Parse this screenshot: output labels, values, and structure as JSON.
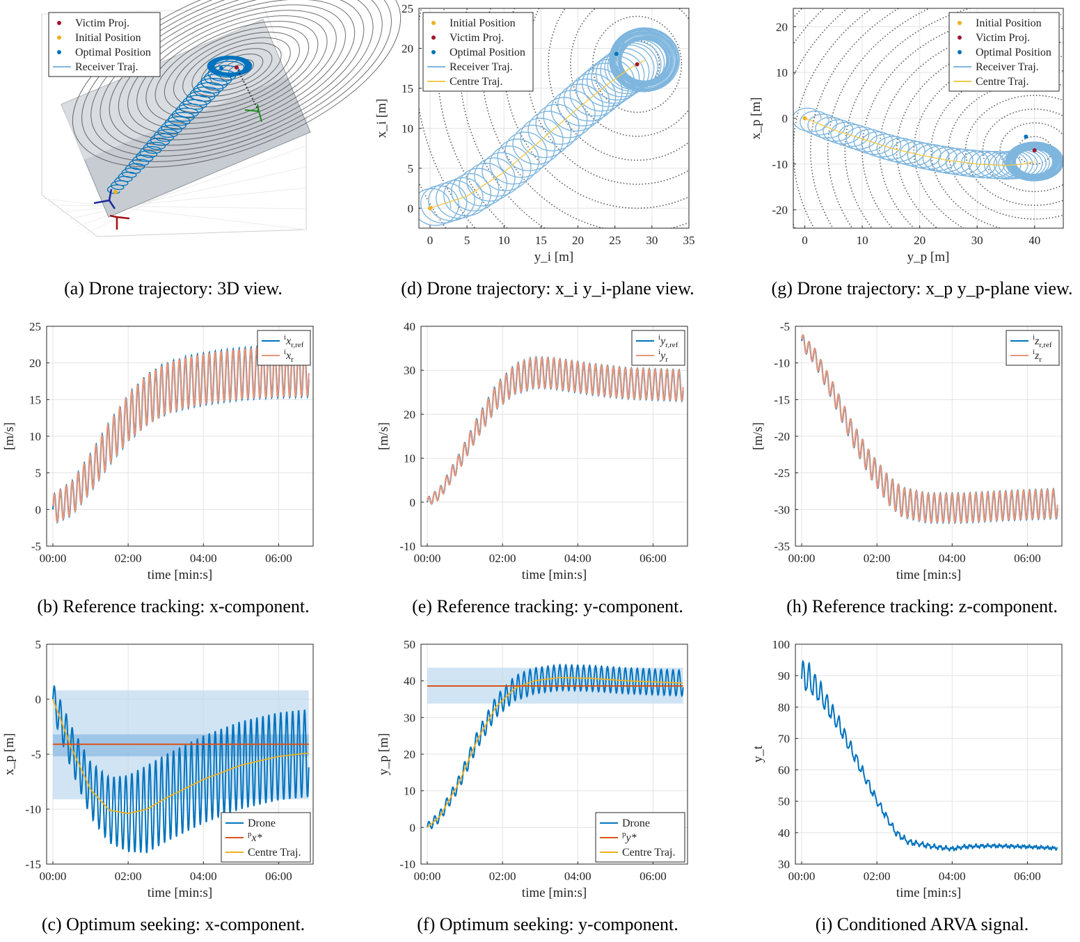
{
  "captions": {
    "a": "(a) Drone trajectory: 3D view.",
    "d": "(d) Drone trajectory: x_i y_i-plane view.",
    "g": "(g) Drone trajectory: x_p y_p-plane view.",
    "b": "(b) Reference tracking: x-component.",
    "e": "(e) Reference tracking: y-component.",
    "h": "(h) Reference tracking: z-component.",
    "c": "(c) Optimum seeking: x-component.",
    "f": "(f) Optimum seeking: y-component.",
    "i": "(i) Conditioned ARVA signal."
  },
  "colors": {
    "blue": "#0072bd",
    "orange": "#e8967a",
    "light_blue": "#7fb6de",
    "yellow": "#f2c94c",
    "red": "#a2142f",
    "gold": "#edb120",
    "brown": "#d95319",
    "band": "#bcd9ef",
    "band_dark": "#7fb2dc"
  },
  "legends": {
    "a": [
      "Victim Proj.",
      "Initial Position",
      "Optimal Position",
      "Receiver Traj."
    ],
    "d": [
      "Initial Position",
      "Victim Proj.",
      "Optimal Position",
      "Receiver Traj.",
      "Centre Traj."
    ],
    "g": [
      "Initial Position",
      "Victim Proj.",
      "Optimal Position",
      "Receiver Traj.",
      "Centre Traj."
    ],
    "b": [
      "i x_r,ref",
      "i x_r"
    ],
    "e": [
      "i y_r,ref",
      "i y_r"
    ],
    "h": [
      "i z_r,ref",
      "i z_r"
    ],
    "c": [
      "Drone",
      "p x*",
      "Centre Traj."
    ],
    "f": [
      "Drone",
      "p y*",
      "Centre Traj."
    ]
  },
  "axes": {
    "time_label": "time [min:s]",
    "ms_label": "[m/s]",
    "time_ticks": [
      "00:00",
      "02:00",
      "04:00",
      "06:00"
    ],
    "d_xlabel": "y_i [m]",
    "d_ylabel": "x_i [m]",
    "g_xlabel": "y_p [m]",
    "g_ylabel": "x_p [m]",
    "c_ylabel": "x_p [m]",
    "f_ylabel": "y_p [m]",
    "i_ylabel": "y_t"
  },
  "chart_data": [
    {
      "id": "a",
      "type": "scatter",
      "title": "(a) Drone trajectory: 3D view.",
      "note": "3D surface view of the drone trajectory",
      "series": [
        {
          "name": "Victim Proj."
        },
        {
          "name": "Initial Position"
        },
        {
          "name": "Optimal Position"
        },
        {
          "name": "Receiver Traj."
        }
      ]
    },
    {
      "id": "d",
      "type": "line",
      "title": "(d) Drone trajectory: x_i y_i-plane view.",
      "xlabel": "y_i [m]",
      "ylabel": "x_i [m]",
      "xlim": [
        -1.5,
        35
      ],
      "ylim": [
        -2.5,
        25
      ],
      "xticks": [
        0,
        5,
        10,
        15,
        20,
        25,
        30,
        35
      ],
      "yticks": [
        0,
        5,
        10,
        15,
        20,
        25
      ],
      "initial_position": [
        0,
        0
      ],
      "victim_proj": [
        28,
        18
      ],
      "optimal_position": [
        25.2,
        19.3
      ],
      "centre_traj": {
        "x": [
          0,
          5,
          10,
          15,
          20,
          24,
          27,
          29
        ],
        "y": [
          0,
          1.5,
          4.5,
          8.5,
          12.5,
          15.5,
          17.5,
          18.5
        ]
      },
      "orbit_radius_start": 2.8,
      "orbit_radius_end": 4.2
    },
    {
      "id": "g",
      "type": "line",
      "title": "(g) Drone trajectory: x_p y_p-plane view.",
      "xlabel": "y_p [m]",
      "ylabel": "x_p [m]",
      "xlim": [
        -2,
        45
      ],
      "ylim": [
        -24,
        24
      ],
      "xticks": [
        0,
        10,
        20,
        30,
        40
      ],
      "yticks": [
        -20,
        -10,
        0,
        10,
        20
      ],
      "initial_position": [
        0,
        0
      ],
      "victim_proj": [
        40,
        -7
      ],
      "optimal_position": [
        38.5,
        -4
      ],
      "centre_traj": {
        "x": [
          0,
          5,
          10,
          15,
          20,
          25,
          30,
          35,
          38,
          40
        ],
        "y": [
          0,
          -2.5,
          -4.5,
          -6.5,
          -8,
          -9.2,
          -10,
          -10.3,
          -10,
          -9.5
        ]
      },
      "orbit_radius_start": 2.8,
      "orbit_radius_end": 4.5
    },
    {
      "id": "b",
      "type": "line",
      "title": "(b) Reference tracking: x-component.",
      "xlabel": "time [min:s]",
      "ylabel": "[m/s]",
      "xlim_s": [
        -10,
        415
      ],
      "ylim": [
        -5,
        25
      ],
      "yticks": [
        -5,
        0,
        5,
        10,
        15,
        20,
        25
      ],
      "center_t": [
        0,
        30,
        60,
        90,
        120,
        150,
        180,
        210,
        240,
        270,
        300,
        330,
        360,
        408
      ],
      "center_v": [
        0,
        1.5,
        5,
        9,
        12.5,
        15,
        16.5,
        17.3,
        17.8,
        18.2,
        18.5,
        18.7,
        18.8,
        18.9
      ],
      "amplitude": [
        2,
        3.5
      ],
      "period_s": 9.5,
      "series": [
        {
          "name": "i x_r,ref"
        },
        {
          "name": "i x_r"
        }
      ]
    },
    {
      "id": "e",
      "type": "line",
      "title": "(e) Reference tracking: y-component.",
      "xlabel": "time [min:s]",
      "ylabel": "[m/s]",
      "xlim_s": [
        -10,
        415
      ],
      "ylim": [
        -10,
        40
      ],
      "yticks": [
        -10,
        0,
        10,
        20,
        30,
        40
      ],
      "center_t": [
        0,
        20,
        50,
        80,
        110,
        140,
        170,
        200,
        260,
        320,
        408
      ],
      "center_v": [
        0,
        2,
        9,
        17,
        24,
        28,
        29.5,
        29.3,
        28,
        27,
        26.5
      ],
      "amplitude": [
        1,
        3.5
      ],
      "period_s": 9.5,
      "series": [
        {
          "name": "i y_r,ref"
        },
        {
          "name": "i y_r"
        }
      ]
    },
    {
      "id": "h",
      "type": "line",
      "title": "(h) Reference tracking: z-component.",
      "xlabel": "time [min:s]",
      "ylabel": "[m/s]",
      "xlim_s": [
        -10,
        415
      ],
      "ylim": [
        -35,
        -5
      ],
      "yticks": [
        -35,
        -30,
        -25,
        -20,
        -15,
        -10,
        -5
      ],
      "center_t": [
        0,
        20,
        50,
        80,
        110,
        140,
        160,
        200,
        260,
        320,
        408
      ],
      "center_v": [
        -7,
        -9,
        -14,
        -19.5,
        -24,
        -27.5,
        -29,
        -29.8,
        -29.8,
        -29.5,
        -29.2
      ],
      "amplitude": [
        1,
        2
      ],
      "period_s": 9.5,
      "series": [
        {
          "name": "i z_r,ref"
        },
        {
          "name": "i z_r"
        }
      ]
    },
    {
      "id": "c",
      "type": "line",
      "title": "(c) Optimum seeking: x-component.",
      "xlabel": "time [min:s]",
      "ylabel": "x_p [m]",
      "xlim_s": [
        -10,
        415
      ],
      "ylim": [
        -15,
        5
      ],
      "yticks": [
        -15,
        -10,
        -5,
        0,
        5
      ],
      "band_outer": [
        -9.1,
        0.8
      ],
      "band_inner": [
        -5.2,
        -3.2
      ],
      "x_star": -4.1,
      "center_t": [
        0,
        30,
        60,
        90,
        120,
        150,
        180,
        240,
        300,
        360,
        408
      ],
      "center_v": [
        0,
        -4.5,
        -8.2,
        -10.1,
        -10.4,
        -10,
        -9,
        -7.3,
        -6,
        -5.2,
        -4.9
      ],
      "amplitude": [
        1.5,
        4
      ],
      "period_s": 9.5,
      "series": [
        {
          "name": "Drone"
        },
        {
          "name": "p x*"
        },
        {
          "name": "Centre Traj."
        }
      ]
    },
    {
      "id": "f",
      "type": "line",
      "title": "(f) Optimum seeking: y-component.",
      "xlabel": "time [min:s]",
      "ylabel": "y_p [m]",
      "xlim_s": [
        -10,
        415
      ],
      "ylim": [
        -10,
        50
      ],
      "yticks": [
        -10,
        0,
        10,
        20,
        30,
        40,
        50
      ],
      "band_outer": [
        33.8,
        43.6
      ],
      "y_star": 38.6,
      "center_t": [
        0,
        20,
        50,
        80,
        110,
        140,
        170,
        210,
        260,
        320,
        408
      ],
      "center_v": [
        0,
        3,
        12,
        24,
        33,
        38,
        40,
        40.9,
        40.7,
        40,
        39.4
      ],
      "amplitude": [
        1.2,
        3.5
      ],
      "period_s": 9.5,
      "series": [
        {
          "name": "Drone"
        },
        {
          "name": "p y*"
        },
        {
          "name": "Centre Traj."
        }
      ]
    },
    {
      "id": "i",
      "type": "line",
      "title": "(i) Conditioned ARVA signal.",
      "xlabel": "time [min:s]",
      "ylabel": "y_t",
      "xlim_s": [
        -10,
        415
      ],
      "ylim": [
        30,
        100
      ],
      "yticks": [
        30,
        40,
        50,
        60,
        70,
        80,
        90,
        100
      ],
      "center_t": [
        0,
        10,
        30,
        60,
        90,
        120,
        150,
        170,
        210,
        240,
        260,
        300,
        360,
        408
      ],
      "center_v": [
        89,
        89,
        84,
        74,
        62,
        50,
        40,
        37,
        35.5,
        34.8,
        35.5,
        35.8,
        35.5,
        35
      ],
      "amplitude_decay": [
        6,
        0.3
      ],
      "period_s": 9.5
    }
  ]
}
